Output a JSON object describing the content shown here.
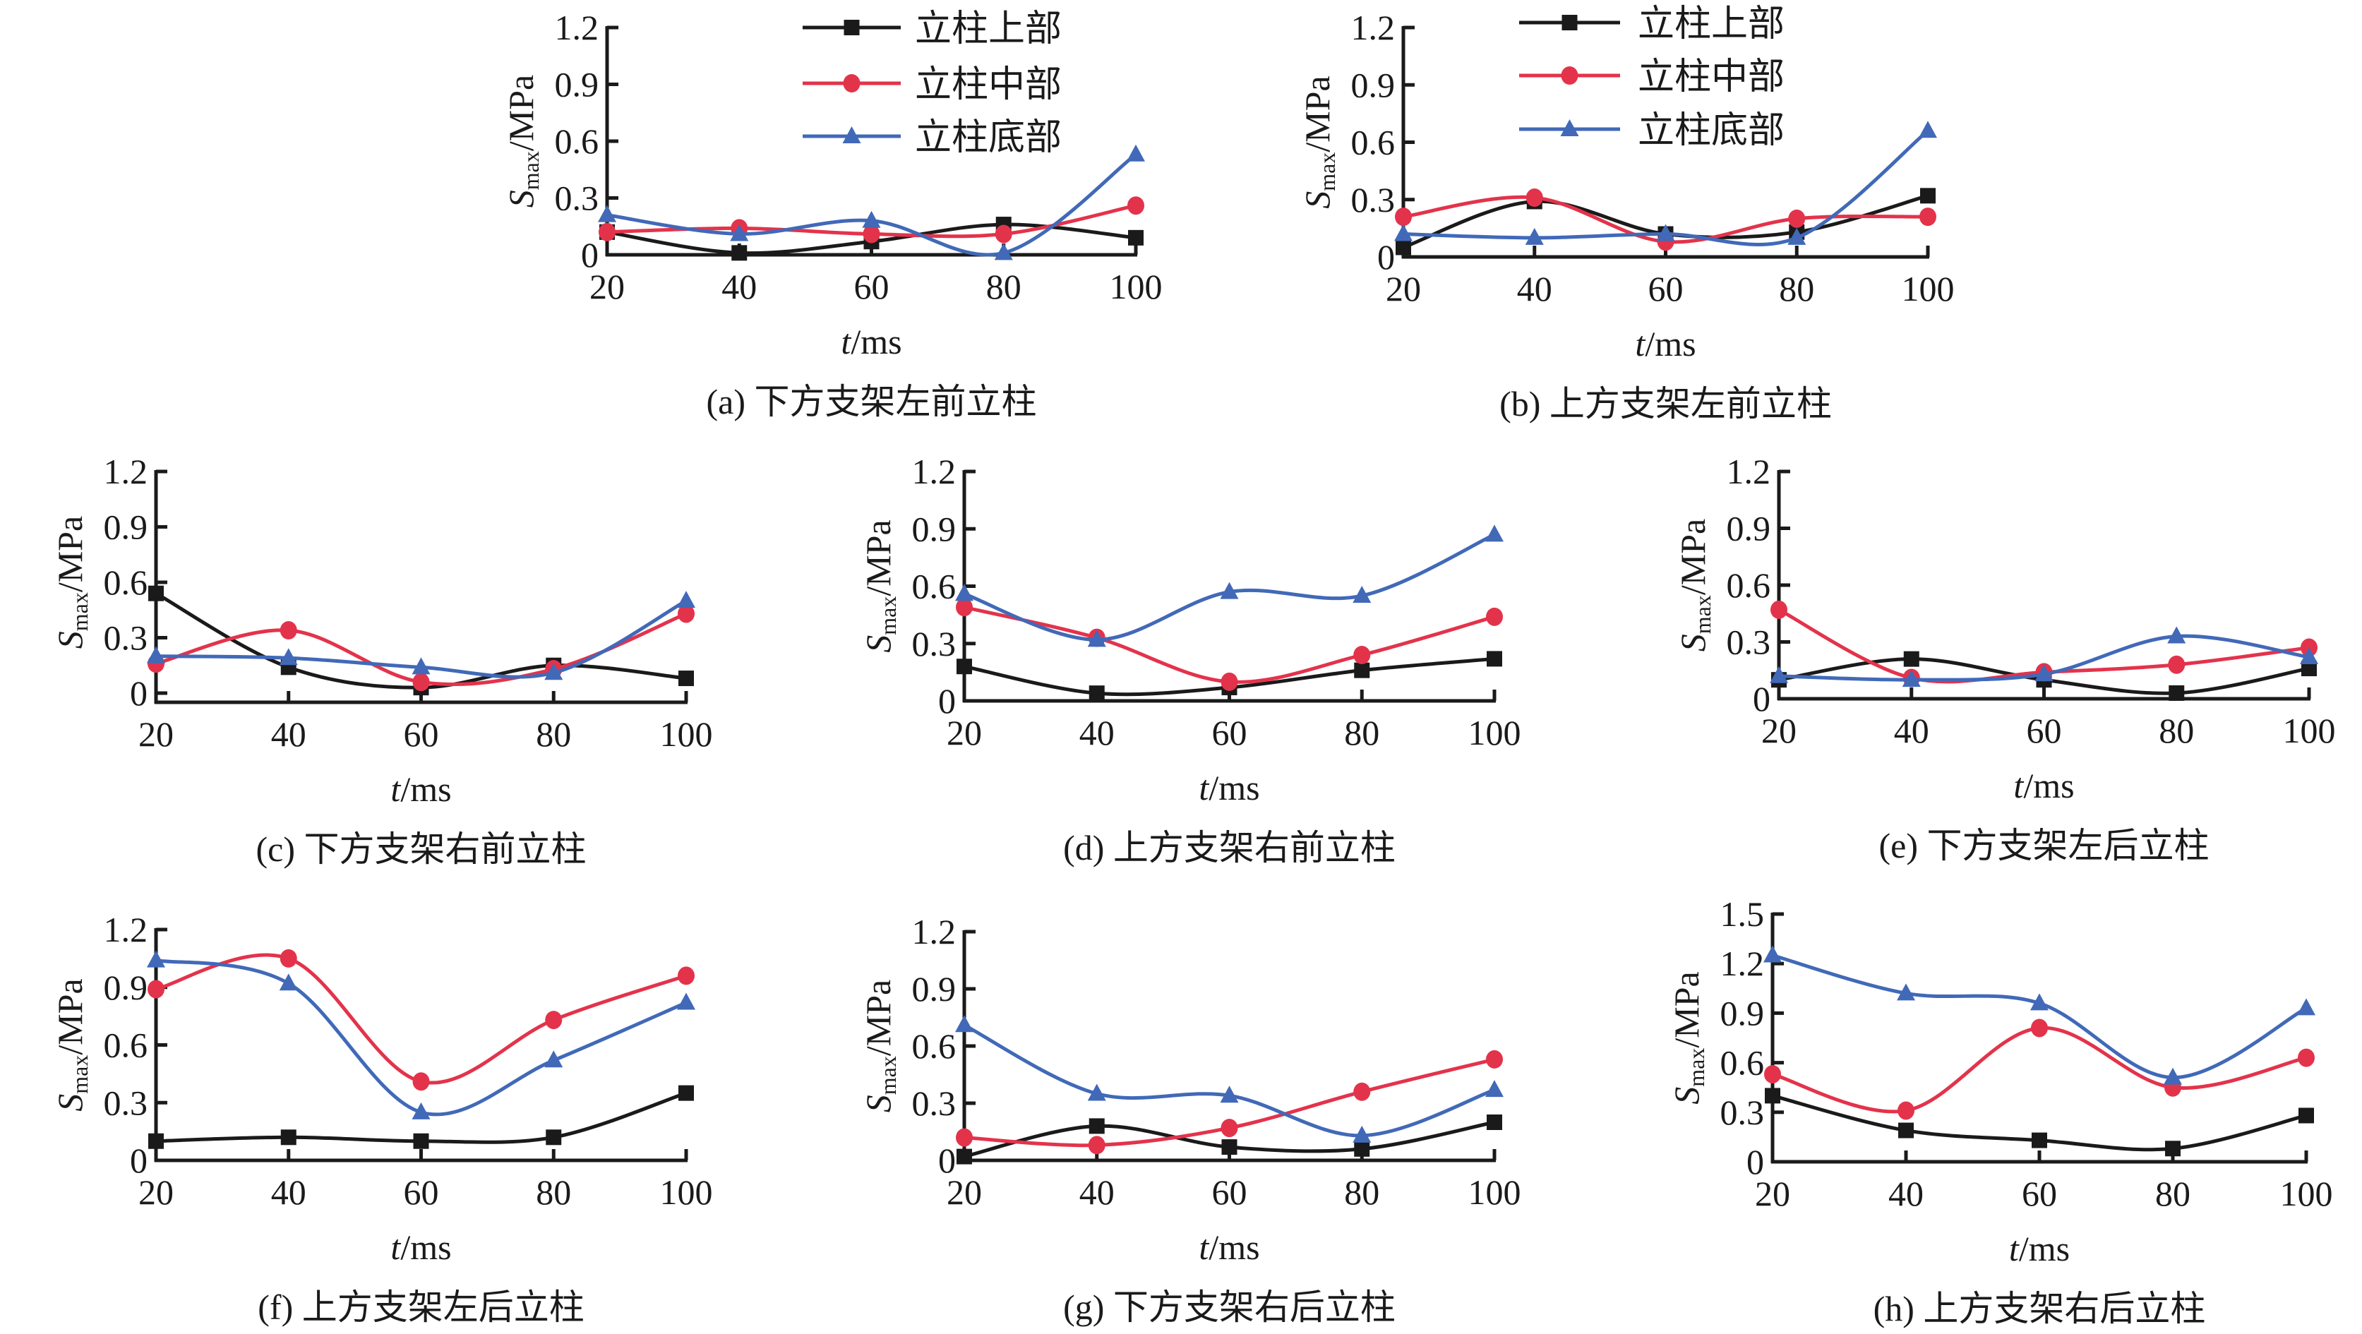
{
  "figure": {
    "legend": [
      {
        "key": "top",
        "label": "立柱上部",
        "color": "#1a1a1a",
        "marker": "square"
      },
      {
        "key": "mid",
        "label": "立柱中部",
        "color": "#e3334b",
        "marker": "circle"
      },
      {
        "key": "bottom",
        "label": "立柱底部",
        "color": "#4169b8",
        "marker": "triangle"
      }
    ]
  },
  "chart_data": [
    {
      "id": "a",
      "type": "line",
      "title": "(a) 下方支架左前立柱",
      "xlabel": "t/ms",
      "ylabel": "Smax/MPa",
      "x": [
        20,
        40,
        60,
        80,
        100
      ],
      "xticks": [
        "20",
        "40",
        "60",
        "80",
        "100"
      ],
      "ylim": [
        0,
        1.2
      ],
      "yticks": [
        "0",
        "0.3",
        "0.6",
        "0.9",
        "1.2"
      ],
      "legend": "top-right",
      "grid": false,
      "series": [
        {
          "name": "立柱上部",
          "values": [
            0.12,
            0.01,
            0.07,
            0.16,
            0.09
          ]
        },
        {
          "name": "立柱中部",
          "values": [
            0.12,
            0.14,
            0.11,
            0.11,
            0.26
          ]
        },
        {
          "name": "立柱底部",
          "values": [
            0.21,
            0.11,
            0.18,
            0.01,
            0.53
          ]
        }
      ]
    },
    {
      "id": "b",
      "type": "line",
      "title": "(b) 上方支架左前立柱",
      "xlabel": "t/ms",
      "ylabel": "Smax/MPa",
      "x": [
        20,
        40,
        60,
        80,
        100
      ],
      "xticks": [
        "20",
        "40",
        "60",
        "80",
        "100"
      ],
      "ylim": [
        0,
        1.2
      ],
      "yticks": [
        "0",
        "0.3",
        "0.6",
        "0.9",
        "1.2"
      ],
      "legend": "top-right",
      "grid": false,
      "series": [
        {
          "name": "立柱上部",
          "values": [
            0.05,
            0.29,
            0.12,
            0.13,
            0.32
          ]
        },
        {
          "name": "立柱中部",
          "values": [
            0.21,
            0.31,
            0.08,
            0.2,
            0.21
          ]
        },
        {
          "name": "立柱底部",
          "values": [
            0.12,
            0.1,
            0.12,
            0.1,
            0.66
          ]
        }
      ]
    },
    {
      "id": "c",
      "type": "line",
      "title": "(c) 下方支架右前立柱",
      "xlabel": "t/ms",
      "ylabel": "Smax/MPa",
      "x": [
        20,
        40,
        60,
        80,
        100
      ],
      "xticks": [
        "20",
        "40",
        "60",
        "80",
        "100"
      ],
      "ylim": [
        0,
        1.2
      ],
      "yticks": [
        "0",
        "0.3",
        "0.6",
        "0.9",
        "1.2"
      ],
      "grid": false,
      "series": [
        {
          "name": "立柱上部",
          "values": [
            0.54,
            0.14,
            0.03,
            0.15,
            0.08
          ]
        },
        {
          "name": "立柱中部",
          "values": [
            0.16,
            0.34,
            0.06,
            0.13,
            0.43
          ]
        },
        {
          "name": "立柱底部",
          "values": [
            0.2,
            0.19,
            0.14,
            0.11,
            0.5
          ]
        }
      ]
    },
    {
      "id": "d",
      "type": "line",
      "title": "(d) 上方支架右前立柱",
      "xlabel": "t/ms",
      "ylabel": "Smax/MPa",
      "x": [
        20,
        40,
        60,
        80,
        100
      ],
      "xticks": [
        "20",
        "40",
        "60",
        "80",
        "100"
      ],
      "ylim": [
        0,
        1.2
      ],
      "yticks": [
        "0",
        "0.3",
        "0.6",
        "0.9",
        "1.2"
      ],
      "grid": false,
      "series": [
        {
          "name": "立柱上部",
          "values": [
            0.18,
            0.04,
            0.07,
            0.16,
            0.22
          ]
        },
        {
          "name": "立柱中部",
          "values": [
            0.49,
            0.33,
            0.1,
            0.24,
            0.44
          ]
        },
        {
          "name": "立柱底部",
          "values": [
            0.56,
            0.32,
            0.57,
            0.55,
            0.87
          ]
        }
      ]
    },
    {
      "id": "e",
      "type": "line",
      "title": "(e) 下方支架左后立柱",
      "xlabel": "t/ms",
      "ylabel": "Smax/MPa",
      "x": [
        20,
        40,
        60,
        80,
        100
      ],
      "xticks": [
        "20",
        "40",
        "60",
        "80",
        "100"
      ],
      "ylim": [
        0,
        1.2
      ],
      "yticks": [
        "0",
        "0.3",
        "0.6",
        "0.9",
        "1.2"
      ],
      "grid": false,
      "series": [
        {
          "name": "立柱上部",
          "values": [
            0.1,
            0.21,
            0.1,
            0.03,
            0.16
          ]
        },
        {
          "name": "立柱中部",
          "values": [
            0.47,
            0.11,
            0.14,
            0.18,
            0.27
          ]
        },
        {
          "name": "立柱底部",
          "values": [
            0.12,
            0.1,
            0.13,
            0.33,
            0.22
          ]
        }
      ]
    },
    {
      "id": "f",
      "type": "line",
      "title": "(f) 上方支架左后立柱",
      "xlabel": "t/ms",
      "ylabel": "Smax/MPa",
      "x": [
        20,
        40,
        60,
        80,
        100
      ],
      "xticks": [
        "20",
        "40",
        "60",
        "80",
        "100"
      ],
      "ylim": [
        0,
        1.2
      ],
      "yticks": [
        "0",
        "0.3",
        "0.6",
        "0.9",
        "1.2"
      ],
      "grid": false,
      "series": [
        {
          "name": "立柱上部",
          "values": [
            0.1,
            0.12,
            0.1,
            0.12,
            0.35
          ]
        },
        {
          "name": "立柱中部",
          "values": [
            0.89,
            1.05,
            0.41,
            0.73,
            0.96
          ]
        },
        {
          "name": "立柱底部",
          "values": [
            1.04,
            0.92,
            0.25,
            0.52,
            0.82
          ]
        }
      ]
    },
    {
      "id": "g",
      "type": "line",
      "title": "(g) 下方支架右后立柱",
      "xlabel": "t/ms",
      "ylabel": "Smax/MPa",
      "x": [
        20,
        40,
        60,
        80,
        100
      ],
      "xticks": [
        "20",
        "40",
        "60",
        "80",
        "100"
      ],
      "ylim": [
        0,
        1.2
      ],
      "yticks": [
        "0",
        "0.3",
        "0.6",
        "0.9",
        "1.2"
      ],
      "grid": false,
      "series": [
        {
          "name": "立柱上部",
          "values": [
            0.02,
            0.18,
            0.07,
            0.06,
            0.2
          ]
        },
        {
          "name": "立柱中部",
          "values": [
            0.12,
            0.08,
            0.17,
            0.36,
            0.53
          ]
        },
        {
          "name": "立柱底部",
          "values": [
            0.71,
            0.35,
            0.34,
            0.13,
            0.37
          ]
        }
      ]
    },
    {
      "id": "h",
      "type": "line",
      "title": "(h) 上方支架右后立柱",
      "xlabel": "t/ms",
      "ylabel": "Smax/MPa",
      "x": [
        20,
        40,
        60,
        80,
        100
      ],
      "xticks": [
        "20",
        "40",
        "60",
        "80",
        "100"
      ],
      "ylim": [
        0,
        1.5
      ],
      "yticks": [
        "0",
        "0.3",
        "0.6",
        "0.9",
        "1.2",
        "1.5"
      ],
      "grid": false,
      "series": [
        {
          "name": "立柱上部",
          "values": [
            0.4,
            0.19,
            0.13,
            0.08,
            0.28
          ]
        },
        {
          "name": "立柱中部",
          "values": [
            0.53,
            0.31,
            0.81,
            0.45,
            0.63
          ]
        },
        {
          "name": "立柱底部",
          "values": [
            1.25,
            1.02,
            0.96,
            0.51,
            0.93
          ]
        }
      ]
    }
  ]
}
